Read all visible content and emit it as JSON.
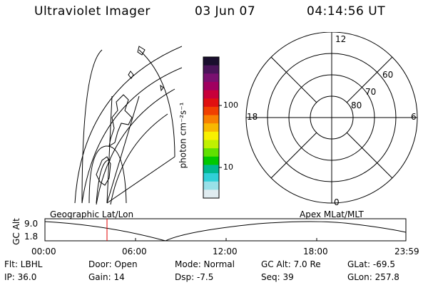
{
  "header": {
    "instrument": "Ultraviolet Imager",
    "date": "03 Jun 07",
    "time": "04:14:56 UT"
  },
  "colorbar": {
    "unit_label": "photon cm⁻²s⁻¹",
    "ticks": [
      "100",
      "10"
    ],
    "colors": [
      "#1a0e2e",
      "#4b145a",
      "#7a1070",
      "#a00060",
      "#c8003a",
      "#e01010",
      "#f04000",
      "#f88000",
      "#f8b800",
      "#f8f000",
      "#c0f000",
      "#60e000",
      "#00c800",
      "#00b890",
      "#30d0d8",
      "#98e0e8",
      "#e0ecf0"
    ]
  },
  "polar_plot": {
    "clock_labels": [
      "12",
      "18",
      "6",
      "0"
    ],
    "lat_labels": [
      "60",
      "70",
      "80"
    ]
  },
  "timeline": {
    "left_label": "Geographic Lat/Lon",
    "right_label": "Apex MLat/MLT",
    "axis_label": "GC Alt",
    "ytick_top": "9.0",
    "ytick_bottom": "1.8",
    "time_ticks": [
      "00:00",
      "06:00",
      "12:00",
      "18:00",
      "23:59"
    ],
    "marker_color": "#e00000"
  },
  "info": {
    "filter": "Flt: LBHL",
    "ip": "IP: 36.0",
    "door": "Door: Open",
    "gain": "Gain: 14",
    "mode": "Mode: Normal",
    "dsp": "Dsp:  -7.5",
    "gc_alt": "GC Alt: 7.0 Re",
    "seq": "Seq: 39",
    "glat": "GLat: -69.5",
    "glon": "GLon: 257.8"
  }
}
